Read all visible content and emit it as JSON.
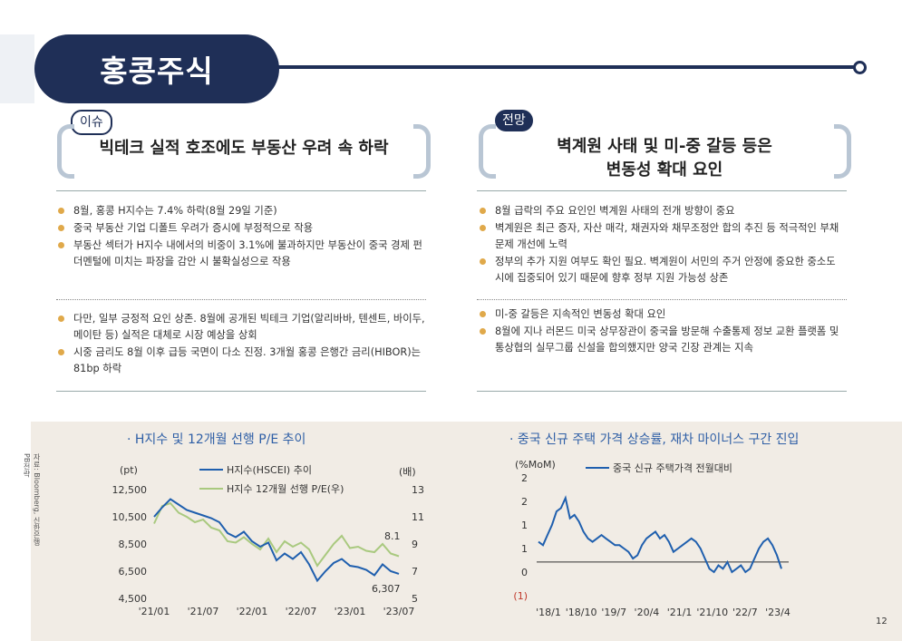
{
  "header": {
    "title": "홍콩주식"
  },
  "left": {
    "tag": "이슈",
    "headline": "빅테크 실적 호조에도 부동산 우려 속 하락",
    "bullets_top": [
      "8월, 홍콩 H지수는 7.4% 하락(8월 29일 기준)",
      "중국 부동산 기업 디폴트 우려가 증시에 부정적으로 작용",
      "부동산 섹터가 H지수 내에서의 비중이 3.1%에 불과하지만 부동산이 중국 경제 펀더멘털에 미치는 파장을 감안 시 불확실성으로 작용"
    ],
    "bullets_bottom": [
      "다만, 일부 긍정적 요인 상존. 8월에 공개된 빅테크 기업(알리바바, 텐센트, 바이두, 메이탄 등) 실적은 대체로 시장 예상을 상회",
      "시중 금리도 8월 이후 급등 국면이 다소 진정. 3개월 홍콩 은행간 금리(HIBOR)는 81bp 하락"
    ]
  },
  "right": {
    "tag": "전망",
    "headline_line1": "벽계원 사태 및 미-중 갈등 등은",
    "headline_line2": "변동성 확대 요인",
    "bullets_top": [
      "8월 급락의 주요 요인인 벽계원 사태의 전개 방향이 중요",
      "벽계원은 최근 증자, 자산 매각, 채권자와 채무조정안 합의 추진 등 적극적인 부채 문제 개선에 노력",
      "정부의 추가 지원 여부도 확인 필요. 벽계원이 서민의 주거 안정에 중요한 중소도시에 집중되어 있기 때문에 향후 정부 지원 가능성 상존"
    ],
    "bullets_bottom": [
      "미-중 갈등은 지속적인 변동성 확대 요인",
      "8월에 지나 러몬드 미국 상무장관이 중국을 방문해 수출통제 정보 교환 플랫폼 및 통상협의 실무그룹 신설을 합의했지만 양국 긴장 관계는 지속"
    ]
  },
  "source_note": "자료: Bloomberg, 신한은행 PB전략",
  "page_number": "12",
  "colors": {
    "navy": "#1f2f57",
    "blue": "#1f5fae",
    "green": "#a9c97f",
    "gold": "#e0a94a",
    "bg": "#f1ece5"
  },
  "chart_data": [
    {
      "type": "line",
      "title": "· H지수 및 12개월 선행 P/E 추이",
      "ylabel_left": "(pt)",
      "ylabel_right": "(배)",
      "x_ticks": [
        "'21/01",
        "'21/07",
        "'22/01",
        "'22/07",
        "'23/01",
        "'23/07"
      ],
      "y_left_ticks": [
        "12,500",
        "10,500",
        "8,500",
        "6,500",
        "4,500"
      ],
      "y_right_ticks": [
        "13",
        "11",
        "9",
        "7",
        "5"
      ],
      "ylim_left": [
        4500,
        12500
      ],
      "ylim_right": [
        5,
        13
      ],
      "series": [
        {
          "name": "H지수(HSCEI) 추이",
          "axis": "left",
          "color": "#1f5fae",
          "values": [
            10500,
            11200,
            11800,
            11400,
            11000,
            10800,
            10600,
            10400,
            10100,
            9300,
            9000,
            9400,
            8700,
            8300,
            8600,
            7300,
            7800,
            7400,
            7900,
            7000,
            5800,
            6500,
            7100,
            7400,
            6900,
            6800,
            6600,
            6200,
            7000,
            6500,
            6307
          ]
        },
        {
          "name": "H지수 12개월 선행 P/E(우)",
          "axis": "right",
          "color": "#a9c97f",
          "values": [
            10.5,
            11.8,
            12.0,
            11.3,
            11.0,
            10.6,
            10.8,
            10.2,
            10.0,
            9.2,
            9.1,
            9.5,
            9.0,
            8.6,
            9.4,
            8.4,
            9.2,
            8.8,
            9.1,
            8.6,
            7.4,
            8.2,
            9.0,
            9.6,
            8.7,
            8.8,
            8.5,
            8.4,
            9.0,
            8.3,
            8.1
          ]
        }
      ],
      "annotations": [
        "8.1",
        "6,307"
      ]
    },
    {
      "type": "line",
      "title": "· 중국 신규 주택 가격 상승률, 재차 마이너스 구간 진입",
      "ylabel": "(%MoM)",
      "y_ticks": [
        "2",
        "2",
        "1",
        "1",
        "0",
        "(1)"
      ],
      "ylim": [
        -1,
        2.5
      ],
      "x_ticks": [
        "'18/1",
        "'18/10",
        "'19/7",
        "'20/4",
        "'21/1",
        "'21/10",
        "'22/7",
        "'23/4"
      ],
      "series": [
        {
          "name": "중국 신규 주택가격 전월대비",
          "color": "#1f5fae",
          "values": [
            0.6,
            0.5,
            0.8,
            1.1,
            1.5,
            1.6,
            1.9,
            1.3,
            1.4,
            1.2,
            0.9,
            0.7,
            0.6,
            0.7,
            0.8,
            0.7,
            0.6,
            0.5,
            0.5,
            0.4,
            0.3,
            0.1,
            0.2,
            0.5,
            0.7,
            0.8,
            0.9,
            0.7,
            0.8,
            0.6,
            0.3,
            0.4,
            0.5,
            0.6,
            0.7,
            0.6,
            0.4,
            0.1,
            -0.2,
            -0.3,
            -0.1,
            -0.2,
            0.0,
            -0.3,
            -0.2,
            -0.1,
            -0.3,
            -0.2,
            0.1,
            0.4,
            0.6,
            0.7,
            0.5,
            0.2,
            -0.2
          ]
        }
      ]
    }
  ]
}
